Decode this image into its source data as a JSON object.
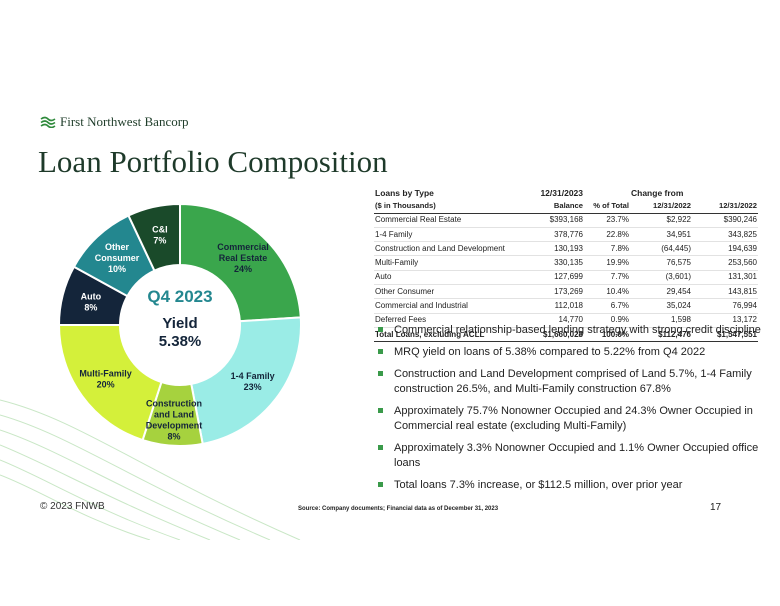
{
  "logo": {
    "name": "First Northwest Bancorp"
  },
  "page_title": "Loan Portfolio Composition",
  "chart_data": {
    "type": "pie",
    "style": "donut",
    "center_labels": [
      "Q4 2023",
      "Yield",
      "5.38%"
    ],
    "categories": [
      "Commercial Real Estate",
      "1-4 Family",
      "Construction and Land Development",
      "Multi-Family",
      "Auto",
      "Other Consumer",
      "C&I"
    ],
    "display_labels": [
      [
        "Commercial",
        "Real Estate",
        "24%"
      ],
      [
        "1-4 Family",
        "23%"
      ],
      [
        "Construction",
        "and Land",
        "Development",
        "8%"
      ],
      [
        "Multi-Family",
        "20%"
      ],
      [
        "Auto",
        "8%"
      ],
      [
        "Other",
        "Consumer",
        "10%"
      ],
      [
        "C&I",
        "7%"
      ]
    ],
    "values": [
      24,
      23,
      8,
      20,
      8,
      10,
      7
    ],
    "colors": [
      "#3aa64c",
      "#9aece6",
      "#a6d23e",
      "#d4f03a",
      "#14253a",
      "#23878f",
      "#1a4a2a"
    ],
    "label_colors": [
      "#14253a",
      "#14253a",
      "#14253a",
      "#14253a",
      "#ffffff",
      "#ffffff",
      "#ffffff"
    ]
  },
  "table": {
    "header1": [
      "Loans by Type",
      "12/31/2023",
      "",
      "Change from",
      ""
    ],
    "header2": [
      "($ in Thousands)",
      "Balance",
      "% of Total",
      "12/31/2022",
      "12/31/2022"
    ],
    "rows": [
      [
        "Commercial Real Estate",
        "$393,168",
        "23.7%",
        "$2,922",
        "$390,246"
      ],
      [
        "1-4 Family",
        "378,776",
        "22.8%",
        "34,951",
        "343,825"
      ],
      [
        "Construction and Land Development",
        "130,193",
        "7.8%",
        "(64,445)",
        "194,639"
      ],
      [
        "Multi-Family",
        "330,135",
        "19.9%",
        "76,575",
        "253,560"
      ],
      [
        "Auto",
        "127,699",
        "7.7%",
        "(3,601)",
        "131,301"
      ],
      [
        "Other Consumer",
        "173,269",
        "10.4%",
        "29,454",
        "143,815"
      ],
      [
        "Commercial and Industrial",
        "112,018",
        "6.7%",
        "35,024",
        "76,994"
      ],
      [
        "Deferred Fees",
        "14,770",
        "0.9%",
        "1,598",
        "13,172"
      ]
    ],
    "total": [
      "Total Loans, excluding ACLL",
      "$1,660,028",
      "100.0%",
      "$112,476",
      "$1,547,551"
    ]
  },
  "bullets": [
    "Commercial relationship-based lending strategy with strong credit discipline",
    "MRQ yield on loans of 5.38% compared to 5.22% from Q4 2022",
    "Construction and Land Development comprised of Land 5.7%, 1-4 Family construction 26.5%, and Multi-Family construction 67.8%",
    "Approximately 75.7% Nonowner Occupied and 24.3% Owner Occupied in Commercial real estate (excluding Multi-Family)",
    "Approximately 3.3% Nonowner Occupied and 1.1% Owner Occupied office loans",
    "Total loans 7.3% increase, or $112.5 million, over prior year"
  ],
  "footer": {
    "copyright": "© 2023 FNWB",
    "source": "Source: Company documents; Financial data as of December 31, 2023",
    "page_number": "17"
  }
}
